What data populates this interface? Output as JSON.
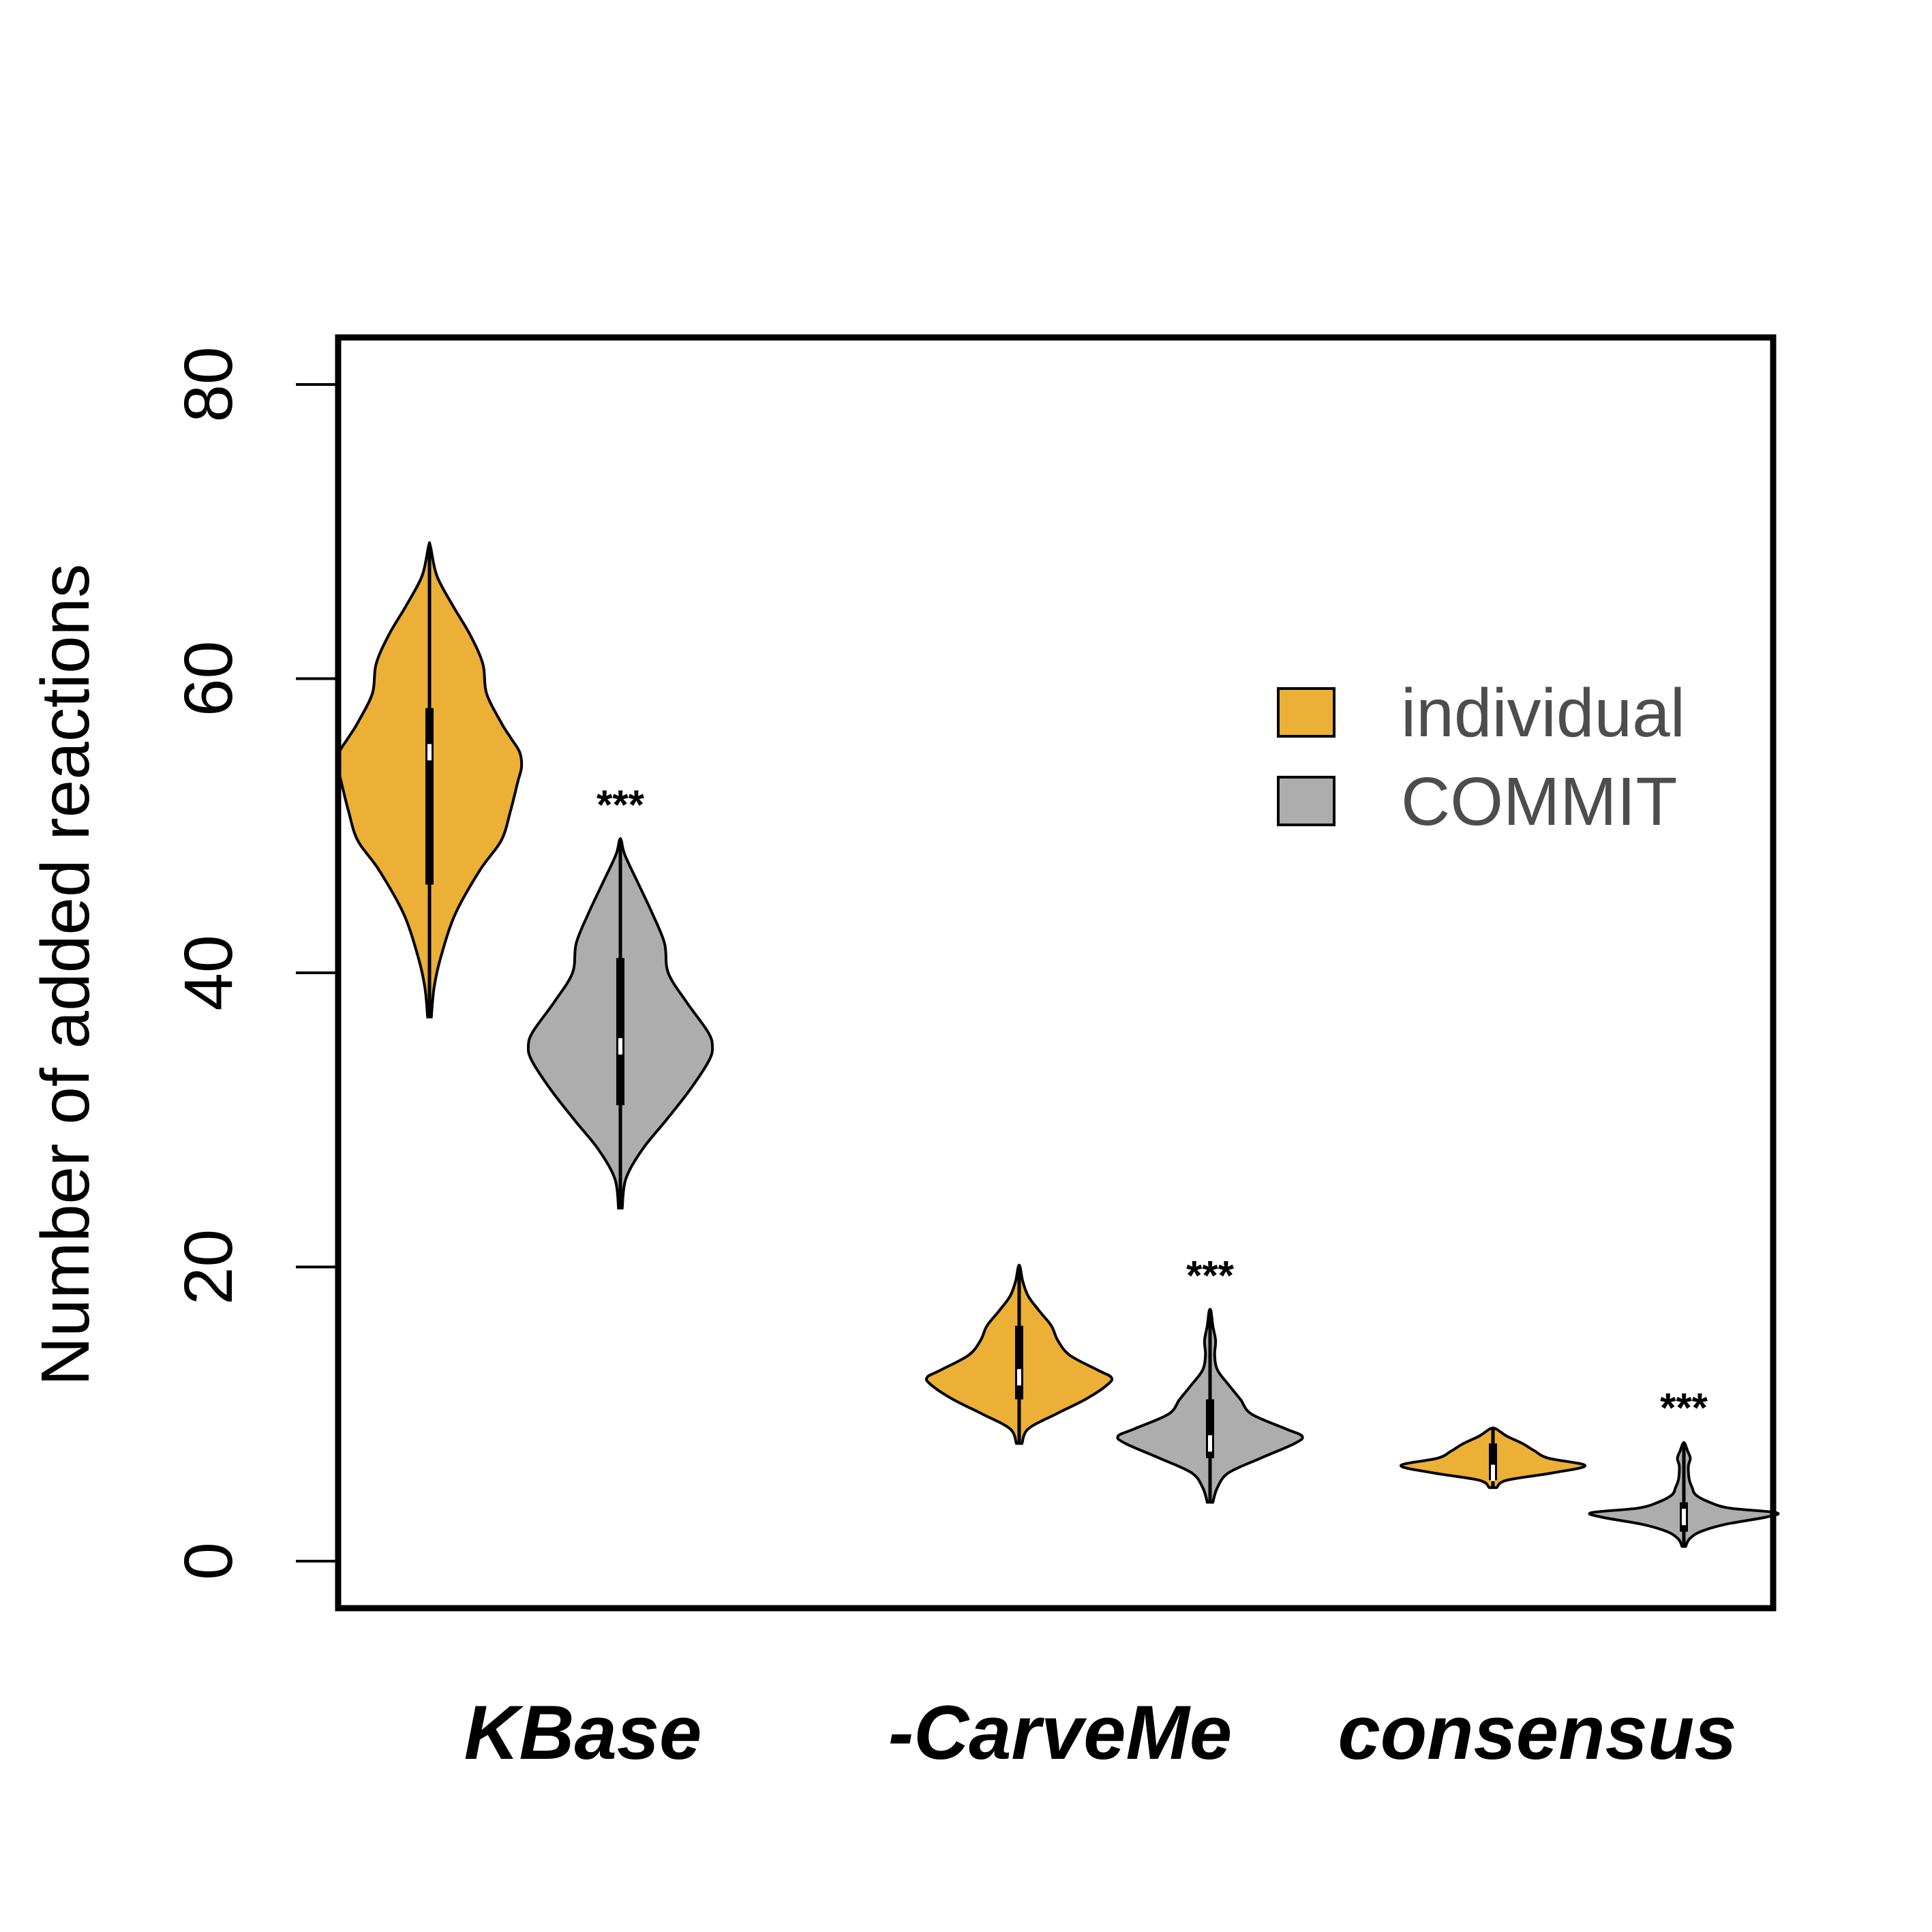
{
  "chart_data": {
    "type": "violin",
    "ylabel": "Number of added reactions",
    "ylim": [
      -3.2,
      83.2
    ],
    "yticks": [
      0,
      20,
      40,
      60,
      80
    ],
    "categories": [
      "KBase",
      "-CarveMe",
      "consensus"
    ],
    "series": [
      {
        "name": "individual",
        "color": "#EBB035"
      },
      {
        "name": "COMMIT",
        "color": "#ADADAD"
      }
    ],
    "legend_position": "top-right",
    "grid": false,
    "violins": [
      {
        "category": "KBase",
        "series": "individual",
        "min": 37,
        "max": 69,
        "q1": 46,
        "median": 55,
        "q3": 58,
        "profile": [
          [
            37,
            0.02
          ],
          [
            39,
            0.05
          ],
          [
            41,
            0.12
          ],
          [
            44,
            0.28
          ],
          [
            47,
            0.55
          ],
          [
            49,
            0.78
          ],
          [
            51,
            0.88
          ],
          [
            53,
            0.96
          ],
          [
            54,
            1.0
          ],
          [
            55,
            0.98
          ],
          [
            56,
            0.88
          ],
          [
            57,
            0.78
          ],
          [
            59,
            0.62
          ],
          [
            61,
            0.58
          ],
          [
            63,
            0.44
          ],
          [
            65,
            0.25
          ],
          [
            67,
            0.08
          ],
          [
            69,
            0.01
          ]
        ]
      },
      {
        "category": "KBase",
        "series": "COMMIT",
        "min": 24,
        "max": 49,
        "q1": 31,
        "median": 35,
        "q3": 41,
        "profile": [
          [
            24,
            0.02
          ],
          [
            26,
            0.06
          ],
          [
            28,
            0.24
          ],
          [
            30,
            0.5
          ],
          [
            32,
            0.75
          ],
          [
            34,
            0.96
          ],
          [
            35,
            1.0
          ],
          [
            36,
            0.95
          ],
          [
            38,
            0.72
          ],
          [
            40,
            0.52
          ],
          [
            42,
            0.48
          ],
          [
            44,
            0.35
          ],
          [
            46,
            0.2
          ],
          [
            48,
            0.05
          ],
          [
            49,
            0.01
          ]
        ]
      },
      {
        "category": "-CarveMe",
        "series": "individual",
        "min": 8,
        "max": 20,
        "q1": 11,
        "median": 12.5,
        "q3": 16,
        "profile": [
          [
            8,
            0.03
          ],
          [
            9,
            0.1
          ],
          [
            10,
            0.4
          ],
          [
            11,
            0.72
          ],
          [
            12,
            0.96
          ],
          [
            12.5,
            1.0
          ],
          [
            13,
            0.85
          ],
          [
            14,
            0.55
          ],
          [
            15,
            0.42
          ],
          [
            16,
            0.35
          ],
          [
            17,
            0.22
          ],
          [
            18,
            0.1
          ],
          [
            19,
            0.04
          ],
          [
            20,
            0.01
          ]
        ]
      },
      {
        "category": "-CarveMe",
        "series": "COMMIT",
        "min": 4,
        "max": 17,
        "q1": 7,
        "median": 8,
        "q3": 11,
        "profile": [
          [
            4,
            0.03
          ],
          [
            5,
            0.08
          ],
          [
            6,
            0.2
          ],
          [
            7,
            0.55
          ],
          [
            8,
            0.92
          ],
          [
            8.5,
            1.0
          ],
          [
            9,
            0.82
          ],
          [
            10,
            0.45
          ],
          [
            11,
            0.33
          ],
          [
            12,
            0.2
          ],
          [
            13,
            0.08
          ],
          [
            14,
            0.05
          ],
          [
            15,
            0.06
          ],
          [
            16,
            0.03
          ],
          [
            17,
            0.01
          ]
        ]
      },
      {
        "category": "consensus",
        "series": "individual",
        "min": 5,
        "max": 9,
        "q1": 5.5,
        "median": 6,
        "q3": 8,
        "profile": [
          [
            5,
            0.04
          ],
          [
            5.5,
            0.15
          ],
          [
            6,
            0.65
          ],
          [
            6.5,
            1.0
          ],
          [
            7,
            0.6
          ],
          [
            7.5,
            0.45
          ],
          [
            8,
            0.32
          ],
          [
            8.5,
            0.15
          ],
          [
            9,
            0.03
          ]
        ]
      },
      {
        "category": "consensus",
        "series": "COMMIT",
        "min": 1,
        "max": 8,
        "q1": 2,
        "median": 3,
        "q3": 4,
        "profile": [
          [
            1,
            0.02
          ],
          [
            1.5,
            0.06
          ],
          [
            2,
            0.18
          ],
          [
            2.5,
            0.45
          ],
          [
            3,
            0.9
          ],
          [
            3.3,
            1.0
          ],
          [
            3.6,
            0.5
          ],
          [
            4,
            0.28
          ],
          [
            4.5,
            0.13
          ],
          [
            5,
            0.09
          ],
          [
            5.5,
            0.06
          ],
          [
            6,
            0.05
          ],
          [
            6.5,
            0.05
          ],
          [
            7,
            0.07
          ],
          [
            7.5,
            0.04
          ],
          [
            8,
            0.01
          ]
        ]
      }
    ],
    "annotations": [
      {
        "category": "KBase",
        "series": "COMMIT",
        "text": "***",
        "y": 51.5
      },
      {
        "category": "-CarveMe",
        "series": "COMMIT",
        "text": "***",
        "y": 19.5
      },
      {
        "category": "consensus",
        "series": "COMMIT",
        "text": "***",
        "y": 10.5
      }
    ]
  }
}
